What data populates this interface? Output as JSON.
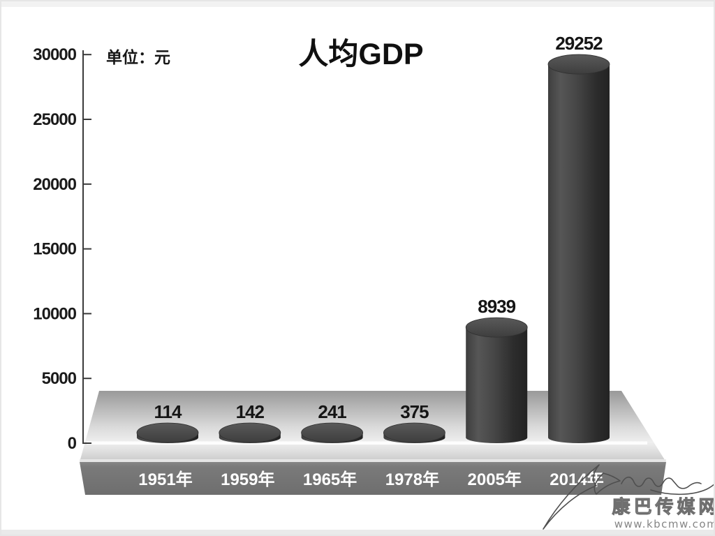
{
  "title": "人均GDP",
  "unit_label": "单位：元",
  "chart_data": {
    "type": "bar",
    "style": "3d-cylinder",
    "title": "人均GDP",
    "unit": "单位：元",
    "categories": [
      "1951年",
      "1959年",
      "1965年",
      "1978年",
      "2005年",
      "2014年"
    ],
    "values": [
      114,
      142,
      241,
      375,
      8939,
      29252
    ],
    "ylim": [
      0,
      30000
    ],
    "yticks": [
      0,
      5000,
      10000,
      15000,
      20000,
      25000,
      30000
    ],
    "grid": false,
    "legend": false
  },
  "watermark": {
    "site_name": "康巴传媒网",
    "site_url": "www.kbcmw.com"
  },
  "colors": {
    "cylinder_dark": "#262626",
    "cylinder_mid": "#4e4e4e",
    "platform_front": "#757575",
    "zero_line": "#fdfdfd",
    "axis": "#3a3a3a",
    "text": "#151515",
    "year_label_text": "#ffffff"
  }
}
